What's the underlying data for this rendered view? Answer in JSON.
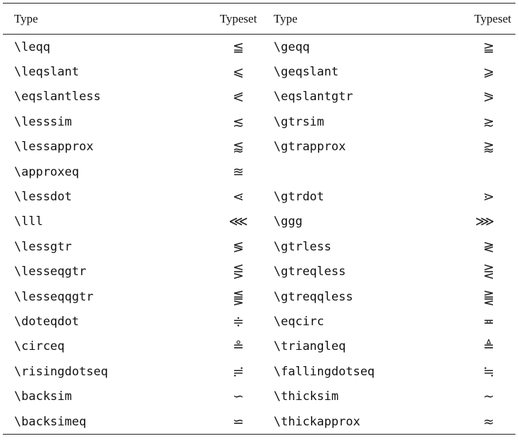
{
  "header": {
    "type_left": "Type",
    "typeset_left": "Typeset",
    "type_right": "Type",
    "typeset_right": "Typeset"
  },
  "rows": [
    {
      "cmd_left": "\\leqq",
      "sym_left": "≦",
      "cmd_right": "\\geqq",
      "sym_right": "≧"
    },
    {
      "cmd_left": "\\leqslant",
      "sym_left": "⩽",
      "cmd_right": "\\geqslant",
      "sym_right": "⩾"
    },
    {
      "cmd_left": "\\eqslantless",
      "sym_left": "⪕",
      "cmd_right": "\\eqslantgtr",
      "sym_right": "⪖"
    },
    {
      "cmd_left": "\\lesssim",
      "sym_left": "≲",
      "cmd_right": "\\gtrsim",
      "sym_right": "≳"
    },
    {
      "cmd_left": "\\lessapprox",
      "sym_left": "⪅",
      "cmd_right": "\\gtrapprox",
      "sym_right": "⪆"
    },
    {
      "cmd_left": "\\approxeq",
      "sym_left": "≊",
      "cmd_right": "",
      "sym_right": ""
    },
    {
      "cmd_left": "\\lessdot",
      "sym_left": "⋖",
      "cmd_right": "\\gtrdot",
      "sym_right": "⋗"
    },
    {
      "cmd_left": "\\lll",
      "sym_left": "⋘",
      "cmd_right": "\\ggg",
      "sym_right": "⋙"
    },
    {
      "cmd_left": "\\lessgtr",
      "sym_left": "≶",
      "cmd_right": "\\gtrless",
      "sym_right": "≷"
    },
    {
      "cmd_left": "\\lesseqgtr",
      "sym_left": "⋚",
      "cmd_right": "\\gtreqless",
      "sym_right": "⋛"
    },
    {
      "cmd_left": "\\lesseqqgtr",
      "sym_left": "⪋",
      "cmd_right": "\\gtreqqless",
      "sym_right": "⪌"
    },
    {
      "cmd_left": "\\doteqdot",
      "sym_left": "≑",
      "cmd_right": "\\eqcirc",
      "sym_right": "≖"
    },
    {
      "cmd_left": "\\circeq",
      "sym_left": "≗",
      "cmd_right": "\\triangleq",
      "sym_right": "≜"
    },
    {
      "cmd_left": "\\risingdotseq",
      "sym_left": "≓",
      "cmd_right": "\\fallingdotseq",
      "sym_right": "≒"
    },
    {
      "cmd_left": "\\backsim",
      "sym_left": "∽",
      "cmd_right": "\\thicksim",
      "sym_right": "∼"
    },
    {
      "cmd_left": "\\backsimeq",
      "sym_left": "⋍",
      "cmd_right": "\\thickapprox",
      "sym_right": "≈"
    }
  ]
}
